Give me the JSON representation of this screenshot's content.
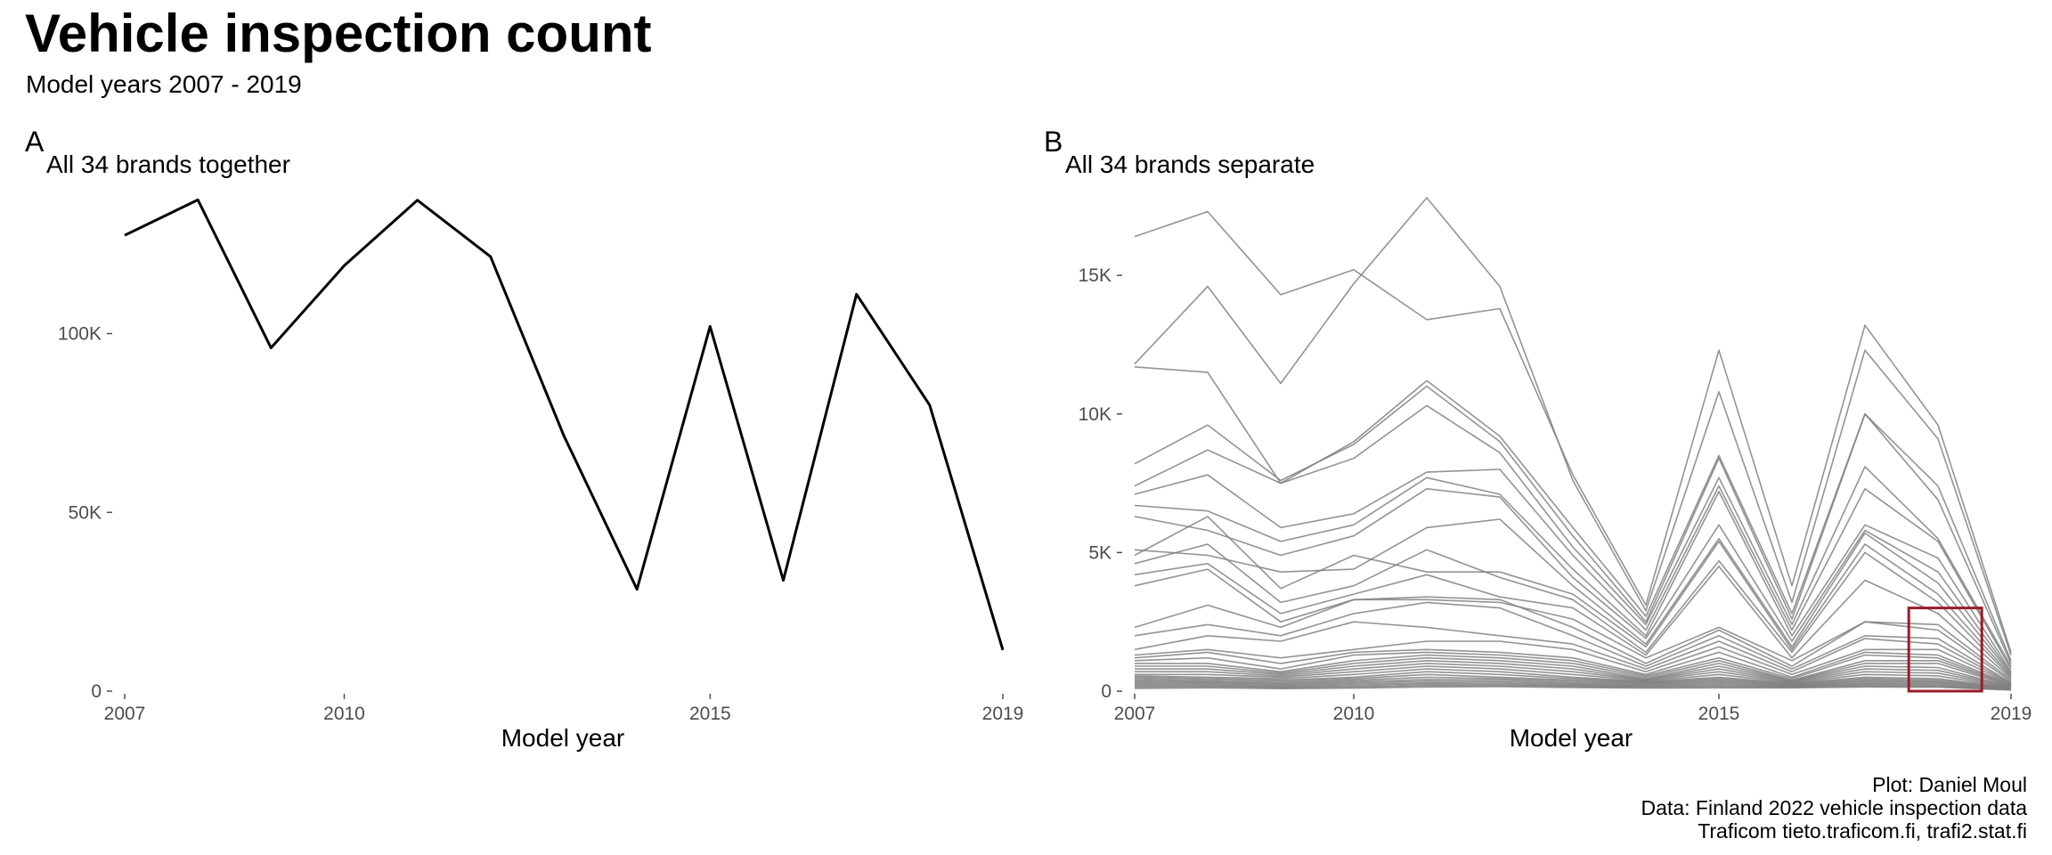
{
  "title": "Vehicle inspection count",
  "subtitle": "Model years 2007 - 2019",
  "caption": [
    "Plot: Daniel Moul",
    "Data: Finland 2022 vehicle inspection data",
    "Traficom tieto.traficom.fi, trafi2.stat.fi"
  ],
  "colors": {
    "line_a": "#000000",
    "line_b": "#808080",
    "highlight": "#9b1b2a",
    "tick": "#4d4d4d"
  },
  "chart_data": [
    {
      "type": "line",
      "tag": "A",
      "title": "All 34 brands together",
      "xlabel": "Model year",
      "ylabel": "",
      "xlim": [
        2007,
        2019
      ],
      "ylim": [
        0,
        138000
      ],
      "x_ticks": [
        2007,
        2010,
        2015,
        2019
      ],
      "y_ticks": [
        0,
        50000,
        100000
      ],
      "y_tick_labels": [
        "0",
        "50K",
        "100K"
      ],
      "grid": false,
      "x": [
        2007,
        2008,
        2009,
        2010,
        2011,
        2012,
        2013,
        2014,
        2015,
        2016,
        2017,
        2018,
        2019
      ],
      "series": [
        {
          "values": [
            127500,
            137400,
            96000,
            119000,
            137300,
            121500,
            71500,
            28500,
            102000,
            31000,
            111000,
            80000,
            11500
          ]
        }
      ]
    },
    {
      "type": "line",
      "tag": "B",
      "title": "All 34 brands separate",
      "xlabel": "Model year",
      "ylabel": "",
      "xlim": [
        2007,
        2019
      ],
      "ylim": [
        0,
        17800
      ],
      "x_ticks": [
        2007,
        2010,
        2015,
        2019
      ],
      "y_ticks": [
        0,
        5000,
        10000,
        15000
      ],
      "y_tick_labels": [
        "0",
        "5K",
        "10K",
        "15K"
      ],
      "grid": false,
      "annotation": {
        "type": "rectangle",
        "x_range": [
          2017.6,
          2018.6
        ],
        "y_range": [
          0,
          3000
        ]
      },
      "x": [
        2007,
        2008,
        2009,
        2010,
        2011,
        2012,
        2013,
        2014,
        2015,
        2016,
        2017,
        2018,
        2019
      ],
      "series": [
        {
          "values": [
            16400,
            17300,
            14300,
            15200,
            13400,
            13800,
            7800,
            3100,
            12300,
            3800,
            13200,
            9600,
            1400
          ]
        },
        {
          "values": [
            11800,
            14600,
            11100,
            14700,
            17800,
            14600,
            7600,
            2900,
            10800,
            3200,
            12300,
            9100,
            1300
          ]
        },
        {
          "values": [
            11700,
            11500,
            7500,
            9000,
            11200,
            9200,
            5900,
            2700,
            8500,
            2800,
            10000,
            7400,
            1100
          ]
        },
        {
          "values": [
            8200,
            9600,
            7600,
            8900,
            11000,
            9000,
            5600,
            2500,
            8400,
            2600,
            10000,
            6900,
            1000
          ]
        },
        {
          "values": [
            7400,
            8700,
            7500,
            8400,
            10300,
            8600,
            5200,
            2400,
            7700,
            2400,
            8100,
            5500,
            900
          ]
        },
        {
          "values": [
            7100,
            7800,
            5900,
            6400,
            7900,
            8000,
            4900,
            2200,
            7400,
            2200,
            7300,
            5400,
            800
          ]
        },
        {
          "values": [
            6700,
            6500,
            5400,
            6000,
            7700,
            7100,
            4400,
            2000,
            7200,
            2000,
            6000,
            4800,
            700
          ]
        },
        {
          "values": [
            6300,
            5800,
            4900,
            5600,
            7300,
            7000,
            4100,
            1900,
            6000,
            1800,
            5800,
            4300,
            650
          ]
        },
        {
          "values": [
            5100,
            4900,
            4300,
            4400,
            5900,
            6200,
            3800,
            1700,
            5500,
            1600,
            5700,
            3900,
            600
          ]
        },
        {
          "values": [
            4900,
            6300,
            3700,
            4900,
            4300,
            4300,
            3500,
            1600,
            5400,
            1500,
            5300,
            3500,
            550
          ]
        },
        {
          "values": [
            4600,
            5300,
            3200,
            3800,
            5100,
            4100,
            3300,
            1400,
            4700,
            1400,
            5000,
            3200,
            500
          ]
        },
        {
          "values": [
            4200,
            4600,
            2800,
            3500,
            4200,
            3400,
            3000,
            1300,
            4500,
            1200,
            4000,
            2800,
            450
          ]
        },
        {
          "values": [
            3800,
            4400,
            2500,
            3300,
            3300,
            3200,
            2600,
            1200,
            2300,
            1100,
            2500,
            2400,
            400
          ]
        },
        {
          "values": [
            2300,
            3100,
            2300,
            3300,
            3400,
            3300,
            2300,
            1000,
            2200,
            900,
            2500,
            2200,
            350
          ]
        },
        {
          "values": [
            2000,
            2400,
            2000,
            2800,
            3200,
            3000,
            2000,
            900,
            2000,
            800,
            2000,
            1900,
            300
          ]
        },
        {
          "values": [
            1500,
            2000,
            1800,
            2500,
            2300,
            2000,
            1700,
            800,
            1800,
            700,
            1900,
            1700,
            280
          ]
        },
        {
          "values": [
            1300,
            1500,
            1200,
            1500,
            1800,
            1800,
            1500,
            700,
            1600,
            600,
            1500,
            1500,
            260
          ]
        },
        {
          "values": [
            1200,
            1400,
            1000,
            1400,
            1500,
            1400,
            1200,
            600,
            1400,
            500,
            1400,
            1300,
            240
          ]
        },
        {
          "values": [
            1100,
            1200,
            800,
            1300,
            1400,
            1300,
            1100,
            550,
            1200,
            450,
            1300,
            1200,
            220
          ]
        },
        {
          "values": [
            1000,
            1000,
            700,
            1100,
            1300,
            1200,
            1000,
            500,
            1100,
            400,
            1100,
            1100,
            200
          ]
        },
        {
          "values": [
            900,
            900,
            650,
            1000,
            1200,
            1100,
            900,
            450,
            1000,
            380,
            1000,
            1000,
            180
          ]
        },
        {
          "values": [
            800,
            800,
            600,
            900,
            1100,
            1000,
            800,
            420,
            900,
            360,
            900,
            850,
            160
          ]
        },
        {
          "values": [
            700,
            700,
            550,
            800,
            1000,
            900,
            700,
            400,
            800,
            340,
            800,
            750,
            150
          ]
        },
        {
          "values": [
            600,
            600,
            500,
            700,
            900,
            800,
            600,
            380,
            700,
            320,
            700,
            650,
            140
          ]
        },
        {
          "values": [
            550,
            500,
            450,
            600,
            800,
            700,
            500,
            350,
            600,
            300,
            600,
            550,
            130
          ]
        },
        {
          "values": [
            500,
            450,
            400,
            500,
            700,
            600,
            450,
            330,
            500,
            280,
            500,
            450,
            120
          ]
        },
        {
          "values": [
            450,
            400,
            350,
            450,
            600,
            500,
            400,
            310,
            450,
            260,
            450,
            400,
            110
          ]
        },
        {
          "values": [
            400,
            350,
            300,
            400,
            500,
            450,
            350,
            290,
            400,
            240,
            400,
            350,
            100
          ]
        },
        {
          "values": [
            350,
            320,
            260,
            350,
            420,
            400,
            300,
            260,
            350,
            220,
            350,
            320,
            90
          ]
        },
        {
          "values": [
            300,
            280,
            220,
            300,
            360,
            340,
            260,
            230,
            300,
            200,
            300,
            280,
            80
          ]
        },
        {
          "values": [
            250,
            240,
            180,
            250,
            300,
            290,
            220,
            200,
            250,
            180,
            260,
            240,
            70
          ]
        },
        {
          "values": [
            200,
            200,
            150,
            200,
            250,
            240,
            190,
            170,
            200,
            160,
            220,
            200,
            60
          ]
        },
        {
          "values": [
            150,
            160,
            120,
            150,
            200,
            200,
            160,
            140,
            160,
            140,
            180,
            170,
            50
          ]
        },
        {
          "values": [
            100,
            120,
            90,
            110,
            150,
            160,
            130,
            110,
            120,
            120,
            150,
            140,
            40
          ]
        }
      ]
    }
  ]
}
